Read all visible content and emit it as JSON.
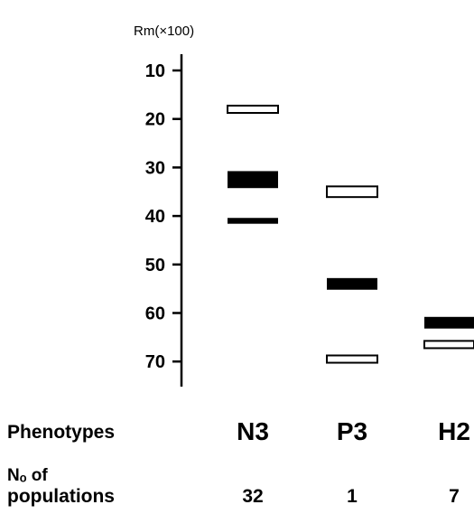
{
  "figure": {
    "axis_label": "Rm(×100)",
    "row_label_phenotypes": "Phenotypes",
    "row_label_count_line1": "Nₒ of",
    "row_label_count_line2": "populations"
  },
  "chart_data": {
    "type": "zymogram",
    "y_axis": {
      "label": "Rm(×100)",
      "ticks": [
        10,
        20,
        30,
        40,
        50,
        60,
        70
      ],
      "range": [
        4,
        76
      ]
    },
    "lanes": [
      {
        "phenotype": "N3",
        "populations": "32",
        "bands": [
          {
            "rm": 18,
            "style": "open",
            "thickness": 1.5
          },
          {
            "rm": 32.5,
            "style": "filled",
            "thickness": 3.5
          },
          {
            "rm": 41,
            "style": "filled",
            "thickness": 1.2
          }
        ]
      },
      {
        "phenotype": "P3",
        "populations": "1",
        "bands": [
          {
            "rm": 35,
            "style": "open",
            "thickness": 2.2
          },
          {
            "rm": 54,
            "style": "filled",
            "thickness": 2.4
          },
          {
            "rm": 69.5,
            "style": "open",
            "thickness": 1.5
          }
        ]
      },
      {
        "phenotype": "H2",
        "populations": "7",
        "bands": [
          {
            "rm": 62,
            "style": "filled",
            "thickness": 2.4
          },
          {
            "rm": 66.5,
            "style": "open",
            "thickness": 1.5
          }
        ]
      }
    ],
    "colors": {
      "band": "#000000",
      "open_fill": "#ffffff"
    }
  }
}
